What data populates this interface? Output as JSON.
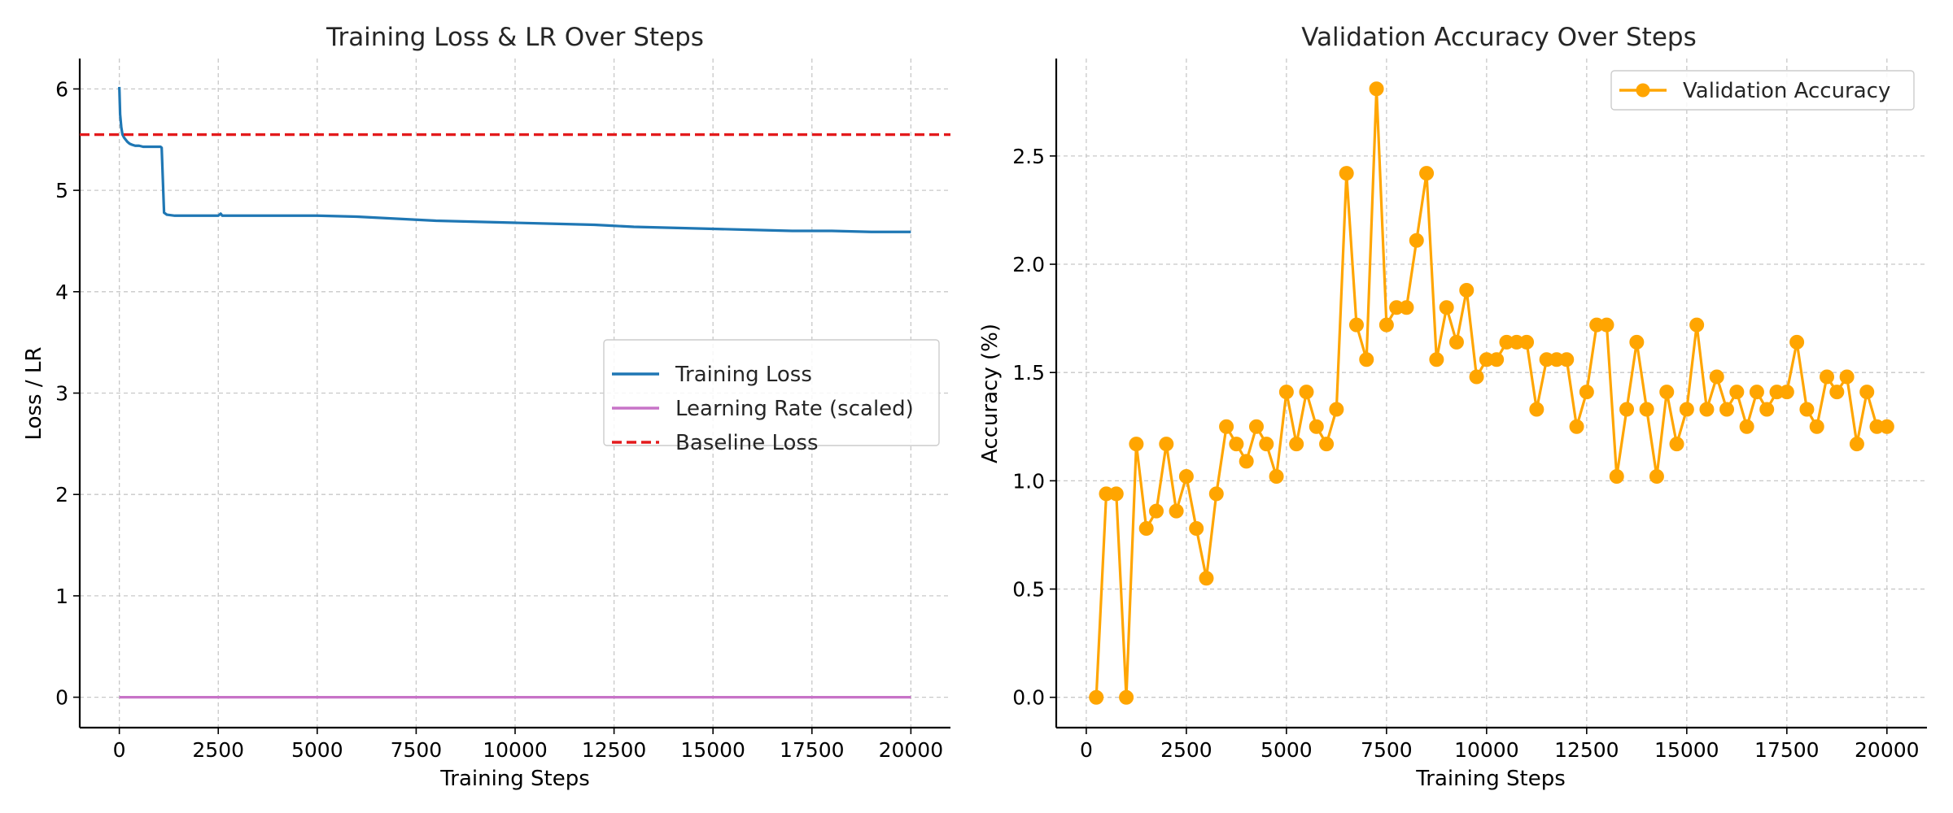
{
  "chart_data": [
    {
      "type": "line",
      "title": "Training Loss & LR Over Steps",
      "xlabel": "Training Steps",
      "ylabel": "Loss / LR",
      "xlim": [
        -1000,
        21000
      ],
      "ylim": [
        -0.3,
        6.3
      ],
      "xticks": [
        0,
        2500,
        5000,
        7500,
        10000,
        12500,
        15000,
        17500,
        20000
      ],
      "xtick_labels": [
        "0",
        "2500",
        "5000",
        "7500",
        "10000",
        "12500",
        "15000",
        "17500",
        "20000"
      ],
      "yticks": [
        0,
        1,
        2,
        3,
        4,
        5,
        6
      ],
      "ytick_labels": [
        "0",
        "1",
        "2",
        "3",
        "4",
        "5",
        "6"
      ],
      "grid": true,
      "legend_position": "center-right",
      "series": [
        {
          "name": "Training Loss",
          "color": "#1f77b4",
          "style": "solid",
          "x": [
            0,
            20,
            50,
            80,
            120,
            160,
            200,
            260,
            320,
            400,
            500,
            600,
            700,
            800,
            900,
            1000,
            1040,
            1070,
            1100,
            1130,
            1200,
            1400,
            1700,
            2000,
            2500,
            2560,
            2600,
            3000,
            4000,
            5000,
            6000,
            7000,
            7500,
            8000,
            9000,
            10000,
            11000,
            12000,
            12500,
            13000,
            14000,
            15000,
            16000,
            17000,
            17500,
            18000,
            19000,
            20000
          ],
          "y": [
            6.02,
            5.75,
            5.62,
            5.55,
            5.52,
            5.5,
            5.48,
            5.46,
            5.45,
            5.44,
            5.44,
            5.43,
            5.43,
            5.43,
            5.43,
            5.43,
            5.43,
            5.42,
            5.1,
            4.78,
            4.76,
            4.75,
            4.75,
            4.75,
            4.75,
            4.77,
            4.75,
            4.75,
            4.75,
            4.75,
            4.74,
            4.72,
            4.71,
            4.7,
            4.69,
            4.68,
            4.67,
            4.66,
            4.65,
            4.64,
            4.63,
            4.62,
            4.61,
            4.6,
            4.6,
            4.6,
            4.59,
            4.59
          ]
        },
        {
          "name": "Learning Rate (scaled)",
          "color": "#c773c7",
          "style": "solid",
          "x": [
            0,
            20000
          ],
          "y": [
            0.0,
            0.0
          ]
        },
        {
          "name": "Baseline Loss",
          "color": "#e31a1c",
          "style": "dashed",
          "x": [
            -1000,
            21000
          ],
          "y": [
            5.55,
            5.55
          ]
        }
      ]
    },
    {
      "type": "line",
      "title": "Validation Accuracy Over Steps",
      "xlabel": "Training Steps",
      "ylabel": "Accuracy (%)",
      "xlim": [
        -750,
        21000
      ],
      "ylim": [
        -0.14,
        2.95
      ],
      "xticks": [
        0,
        2500,
        5000,
        7500,
        10000,
        12500,
        15000,
        17500,
        20000
      ],
      "xtick_labels": [
        "0",
        "2500",
        "5000",
        "7500",
        "10000",
        "12500",
        "15000",
        "17500",
        "20000"
      ],
      "yticks": [
        0.0,
        0.5,
        1.0,
        1.5,
        2.0,
        2.5
      ],
      "ytick_labels": [
        "0.0",
        "0.5",
        "1.0",
        "1.5",
        "2.0",
        "2.5"
      ],
      "grid": true,
      "legend_position": "top-right",
      "series": [
        {
          "name": "Validation Accuracy",
          "color": "#ffa500",
          "style": "solid",
          "marker": "o",
          "x": [
            250,
            500,
            750,
            1000,
            1250,
            1500,
            1750,
            2000,
            2250,
            2500,
            2750,
            3000,
            3250,
            3500,
            3750,
            4000,
            4250,
            4500,
            4750,
            5000,
            5250,
            5500,
            5750,
            6000,
            6250,
            6500,
            6750,
            7000,
            7250,
            7500,
            7750,
            8000,
            8250,
            8500,
            8750,
            9000,
            9250,
            9500,
            9750,
            10000,
            10250,
            10500,
            10750,
            11000,
            11250,
            11500,
            11750,
            12000,
            12250,
            12500,
            12750,
            13000,
            13250,
            13500,
            13750,
            14000,
            14250,
            14500,
            14750,
            15000,
            15250,
            15500,
            15750,
            16000,
            16250,
            16500,
            16750,
            17000,
            17250,
            17500,
            17750,
            18000,
            18250,
            18500,
            18750,
            19000,
            19250,
            19500,
            19750,
            20000
          ],
          "y": [
            0.0,
            0.94,
            0.94,
            0.0,
            1.17,
            0.78,
            0.86,
            1.17,
            0.86,
            1.02,
            0.78,
            0.55,
            0.94,
            1.25,
            1.17,
            1.09,
            1.25,
            1.17,
            1.02,
            1.41,
            1.17,
            1.41,
            1.25,
            1.17,
            1.33,
            2.42,
            1.72,
            1.56,
            2.81,
            1.72,
            1.8,
            1.8,
            2.11,
            2.42,
            1.56,
            1.8,
            1.64,
            1.88,
            1.48,
            1.56,
            1.56,
            1.64,
            1.64,
            1.64,
            1.33,
            1.56,
            1.56,
            1.56,
            1.25,
            1.41,
            1.72,
            1.72,
            1.02,
            1.33,
            1.64,
            1.33,
            1.02,
            1.41,
            1.17,
            1.33,
            1.72,
            1.33,
            1.48,
            1.33,
            1.41,
            1.25,
            1.41,
            1.33,
            1.41,
            1.41,
            1.64,
            1.33,
            1.25,
            1.48,
            1.41,
            1.48,
            1.17,
            1.41,
            1.25,
            1.25
          ]
        }
      ]
    }
  ]
}
